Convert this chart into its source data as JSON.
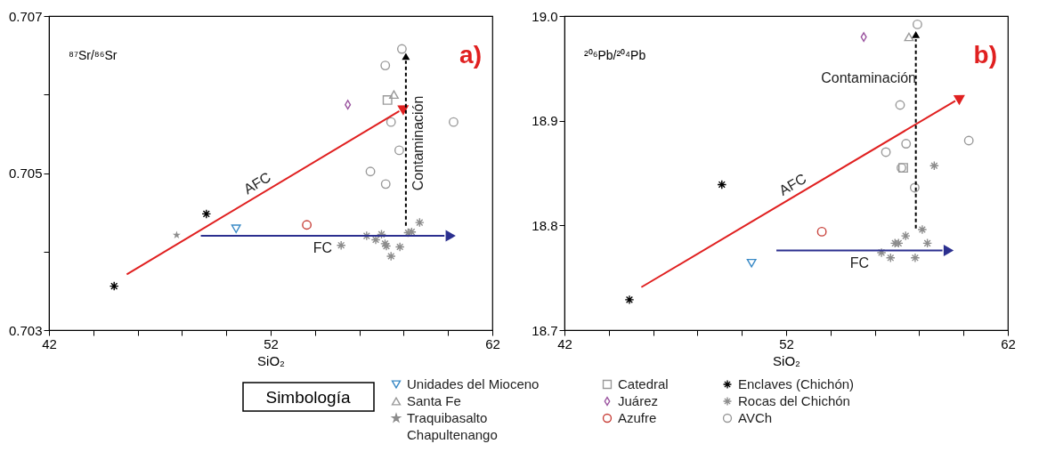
{
  "chart_data": [
    {
      "type": "scatter",
      "ylabel": "⁸⁷Sr/⁸⁶Sr",
      "xlabel": "SiO₂",
      "xlim": [
        42,
        62
      ],
      "ylim": [
        0.703,
        0.707
      ],
      "xticks": [
        42,
        {
          "value": 44,
          "label": null
        },
        {
          "value": 46,
          "label": null
        },
        {
          "value": 48,
          "label": null
        },
        {
          "value": 50,
          "label": null
        },
        52,
        {
          "value": 54,
          "label": null
        },
        {
          "value": 56,
          "label": null
        },
        {
          "value": 58,
          "label": null
        },
        {
          "value": 60,
          "label": null
        },
        62
      ],
      "yticks": [
        0.703,
        {
          "value": 0.704,
          "label": null
        },
        0.705,
        {
          "value": 0.706,
          "label": null
        },
        0.707
      ],
      "legend": "bottom",
      "legend_title": "Simbología",
      "annotations": [
        "a)"
      ],
      "series": [
        {
          "name": "Unidades del Mioceno",
          "marker": "triangle-down",
          "color": "#3a8ac6",
          "x": [
            50.44
          ],
          "values": [
            0.70429
          ]
        },
        {
          "name": "Santa Fe",
          "marker": "triangle",
          "color": "#9a9a9a",
          "x": [
            57.56
          ],
          "values": [
            0.706
          ]
        },
        {
          "name": "Traquibasalto Chapultenango",
          "marker": "star",
          "color": "#8c8c8c",
          "x": [
            47.76
          ],
          "values": [
            0.70421
          ]
        },
        {
          "name": "Catedral",
          "marker": "square",
          "color": "#9a9a9a",
          "x": [
            57.27
          ],
          "values": [
            0.70593
          ]
        },
        {
          "name": "Juárez",
          "marker": "diamond",
          "color": "#9b55a0",
          "x": [
            55.48
          ],
          "values": [
            0.70587
          ]
        },
        {
          "name": "Azufre",
          "marker": "circle",
          "color": "#c8413a",
          "x": [
            53.63
          ],
          "values": [
            0.70434
          ]
        },
        {
          "name": "Enclaves (Chichón)",
          "marker": "cross",
          "color": "#000000",
          "x": [
            44.94,
            49.1
          ],
          "values": [
            0.70356,
            0.70448
          ]
        },
        {
          "name": "Rocas del Chichón",
          "marker": "cross",
          "color": "#8c8c8c",
          "x": [
            55.18,
            56.33,
            56.74,
            57.0,
            57.16,
            57.22,
            57.43,
            57.83,
            58.2,
            58.36,
            58.72
          ],
          "values": [
            0.70408,
            0.7042,
            0.70415,
            0.70422,
            0.7041,
            0.70407,
            0.70394,
            0.70406,
            0.70424,
            0.70425,
            0.70437
          ]
        },
        {
          "name": "AVCh",
          "marker": "circle",
          "color": "#9a9a9a",
          "x": [
            57.92,
            57.17,
            57.43,
            60.25,
            57.8,
            56.5,
            57.19
          ],
          "values": [
            0.70658,
            0.70637,
            0.70565,
            0.70565,
            0.70529,
            0.70502,
            0.70486
          ]
        },
        {
          "name": "AFC",
          "type": "line",
          "line_style": "solid",
          "color": "#e02020",
          "x": [
            45.51,
            57.8
          ],
          "values": [
            0.70371,
            0.70579
          ]
        },
        {
          "name": "FC",
          "type": "line",
          "line_style": "solid",
          "color": "#2b2f8f",
          "x": [
            48.85,
            59.84
          ],
          "values": [
            0.7042,
            0.7042
          ]
        },
        {
          "name": "Contaminación",
          "type": "line",
          "line_style": "dashed",
          "color": "#000000",
          "x": [
            58.1,
            58.1
          ],
          "values": [
            0.70433,
            0.70643
          ]
        }
      ]
    },
    {
      "type": "scatter",
      "ylabel": "²⁰⁶Pb/²⁰⁴Pb",
      "xlabel": "SiO₂",
      "xlim": [
        42,
        62
      ],
      "ylim": [
        18.7,
        19.0
      ],
      "xticks": [
        42,
        {
          "value": 44,
          "label": null
        },
        {
          "value": 46,
          "label": null
        },
        {
          "value": 48,
          "label": null
        },
        {
          "value": 50,
          "label": null
        },
        52,
        {
          "value": 54,
          "label": null
        },
        {
          "value": 56,
          "label": null
        },
        {
          "value": 58,
          "label": null
        },
        {
          "value": 60,
          "label": null
        },
        62
      ],
      "yticks": [
        18.7,
        18.8,
        18.9,
        {
          "value": 19.0,
          "label": "19.0"
        }
      ],
      "annotations": [
        "b)",
        "Contaminación"
      ],
      "series": [
        {
          "name": "Unidades del Mioceno",
          "marker": "triangle-down",
          "color": "#3a8ac6",
          "x": [
            50.44
          ],
          "values": [
            18.764
          ]
        },
        {
          "name": "Santa Fe",
          "marker": "triangle",
          "color": "#9a9a9a",
          "x": [
            57.54
          ],
          "values": [
            18.98
          ]
        },
        {
          "name": "Catedral",
          "marker": "square",
          "color": "#9a9a9a",
          "x": [
            57.28
          ],
          "values": [
            18.855
          ]
        },
        {
          "name": "Juárez",
          "marker": "diamond",
          "color": "#9b55a0",
          "x": [
            55.5
          ],
          "values": [
            18.98
          ]
        },
        {
          "name": "Azufre",
          "marker": "circle",
          "color": "#c8413a",
          "x": [
            53.61
          ],
          "values": [
            18.794
          ]
        },
        {
          "name": "Enclaves (Chichón)",
          "marker": "cross",
          "color": "#000000",
          "x": [
            44.93,
            49.1
          ],
          "values": [
            18.729,
            18.839
          ]
        },
        {
          "name": "Rocas del Chichón",
          "marker": "cross",
          "color": "#8c8c8c",
          "x": [
            58.68,
            58.14,
            57.39,
            57.07,
            56.91,
            58.37,
            56.3,
            56.71,
            57.82
          ],
          "values": [
            18.857,
            18.796,
            18.79,
            18.783,
            18.783,
            18.783,
            18.774,
            18.769,
            18.769
          ]
        },
        {
          "name": "AVCh",
          "marker": "circle",
          "color": "#9a9a9a",
          "x": [
            57.92,
            57.14,
            60.24,
            57.41,
            56.5,
            57.2,
            57.8
          ],
          "values": [
            18.992,
            18.915,
            18.881,
            18.878,
            18.87,
            18.855,
            18.836
          ]
        },
        {
          "name": "AFC",
          "type": "line",
          "line_style": "solid",
          "color": "#e02020",
          "x": [
            45.47,
            59.63
          ],
          "values": [
            18.741,
            18.919
          ]
        },
        {
          "name": "FC",
          "type": "line",
          "line_style": "solid",
          "color": "#2b2f8f",
          "x": [
            51.56,
            59.05
          ],
          "values": [
            18.776,
            18.776
          ]
        },
        {
          "type": "line",
          "line_style": "dashed",
          "color": "#000000",
          "x": [
            57.85,
            57.85
          ],
          "values": [
            18.797,
            18.978
          ]
        }
      ]
    }
  ]
}
